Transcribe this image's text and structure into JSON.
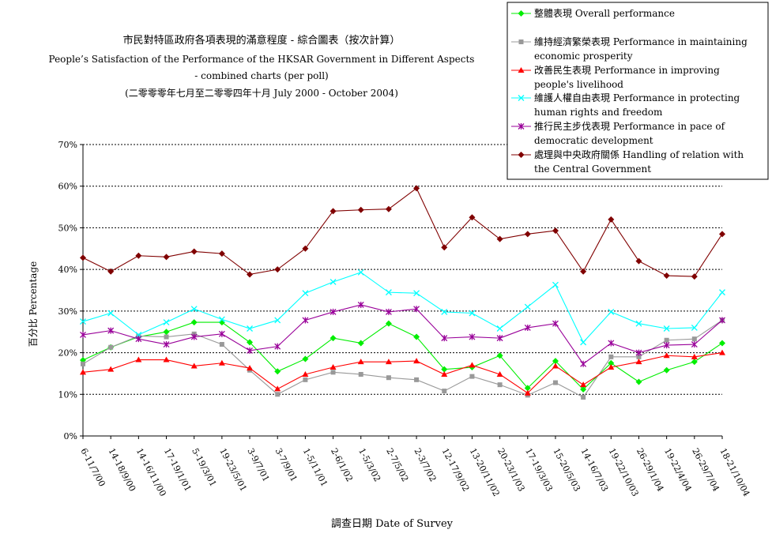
{
  "chart_data": {
    "type": "line",
    "title_lines": [
      "市民對特區政府各項表現的滿意程度  -  綜合圖表（按次計算）",
      "People’s Satisfaction of the Performance of the HKSAR Government in Different Aspects",
      "- combined charts  (per poll)",
      "(二零零零年七月至二零零四年十月 July 2000 - October 2004)"
    ],
    "xlabel": "調查日期 Date of Survey",
    "ylabel": "百分比 Percentage",
    "ylim": [
      0,
      70
    ],
    "yticks": [
      0,
      10,
      20,
      30,
      40,
      50,
      60,
      70
    ],
    "ytick_labels": [
      "0%",
      "10%",
      "20%",
      "30%",
      "40%",
      "50%",
      "60%",
      "70%"
    ],
    "grid": "horizontal dashed",
    "legend_position": "top-right",
    "categories": [
      "6-11/7/00",
      "14-18/9/00",
      "14-16/11/00",
      "17-19/1/01",
      "5-19/3/01",
      "19-23/5/01",
      "3-9/7/01",
      "3-7/9/01",
      "1-5/11/01",
      "2-6/1/02",
      "1-5/3/02",
      "2-7/5/02",
      "2-3/7/02",
      "12-17/9/02",
      "13-20/11/02",
      "20-23/1/03",
      "17-19/3/03",
      "15-20/5/03",
      "14-16/7/03",
      "19-22/10/03",
      "26-29/1/04",
      "19-22/4/04",
      "26-29/7/04",
      "18-21/10/04"
    ],
    "series": [
      {
        "name": "整體表現 Overall performance",
        "color": "#00ee00",
        "marker": "diamond",
        "values": [
          18.2,
          21.3,
          23.8,
          25.0,
          27.3,
          27.3,
          22.5,
          15.5,
          18.5,
          23.5,
          22.3,
          27.0,
          23.8,
          16.0,
          16.5,
          19.3,
          11.5,
          18.0,
          11.2,
          17.5,
          13.0,
          15.8,
          17.8,
          22.3
        ]
      },
      {
        "name": "維持經濟繁榮表現 Performance in maintaining economic prosperity",
        "color": "#999999",
        "marker": "square",
        "values": [
          17.3,
          21.3,
          24.0,
          23.8,
          24.5,
          22.0,
          15.8,
          10.0,
          13.5,
          15.3,
          14.8,
          14.0,
          13.5,
          10.8,
          14.3,
          12.3,
          9.8,
          12.8,
          9.3,
          19.0,
          19.0,
          23.0,
          23.3,
          27.8
        ]
      },
      {
        "name": "改善民生表現 Performance in improving people's livelihood",
        "color": "#ff0000",
        "marker": "triangle",
        "values": [
          15.3,
          16.0,
          18.3,
          18.3,
          16.8,
          17.5,
          16.3,
          11.3,
          14.8,
          16.5,
          17.8,
          17.8,
          18.0,
          14.8,
          17.0,
          14.8,
          10.3,
          16.8,
          12.3,
          16.5,
          17.8,
          19.3,
          19.0,
          20.0
        ]
      },
      {
        "name": "維護人權自由表現 Performance in protecting human rights and freedom",
        "color": "#00ffff",
        "marker": "x",
        "values": [
          27.5,
          29.5,
          24.3,
          27.3,
          30.5,
          28.0,
          25.8,
          27.8,
          34.3,
          37.0,
          39.3,
          34.5,
          34.3,
          29.8,
          29.5,
          25.8,
          31.0,
          36.3,
          22.5,
          29.8,
          27.0,
          25.8,
          26.0,
          34.5
        ]
      },
      {
        "name": "推行民主步伐表現 Performance in pace of democratic development",
        "color": "#990099",
        "marker": "star",
        "values": [
          24.3,
          25.3,
          23.3,
          22.0,
          23.8,
          24.5,
          20.5,
          21.5,
          27.8,
          29.8,
          31.5,
          29.8,
          30.5,
          23.5,
          23.8,
          23.5,
          26.0,
          27.0,
          17.3,
          22.3,
          20.0,
          21.8,
          22.0,
          27.8
        ]
      },
      {
        "name": "處理與中央政府關係 Handling of relation with the Central Government",
        "color": "#800000",
        "marker": "diamond",
        "values": [
          42.8,
          39.5,
          43.3,
          43.0,
          44.3,
          43.8,
          38.8,
          40.0,
          45.0,
          54.0,
          54.3,
          54.5,
          59.5,
          45.3,
          52.5,
          47.3,
          48.5,
          49.3,
          39.5,
          52.0,
          42.0,
          38.5,
          38.3,
          48.5
        ]
      }
    ]
  },
  "legend": [
    {
      "label_lines": [
        "整體表現 Overall performance"
      ]
    },
    {
      "label_lines": [
        "維持經濟繁榮表現 Performance in maintaining",
        "economic prosperity"
      ]
    },
    {
      "label_lines": [
        "改善民生表現 Performance in improving",
        "people's livelihood"
      ]
    },
    {
      "label_lines": [
        "維護人權自由表現 Performance in protecting",
        "human rights and freedom"
      ]
    },
    {
      "label_lines": [
        "推行民主步伐表現 Performance in pace of",
        "democratic development"
      ]
    },
    {
      "label_lines": [
        "處理與中央政府關係 Handling of relation with",
        "the Central Government"
      ]
    }
  ]
}
